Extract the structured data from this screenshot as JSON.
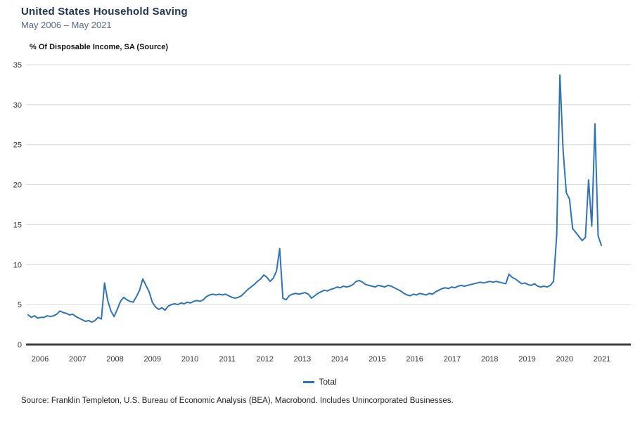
{
  "header": {
    "title": "United States Household Saving",
    "subtitle": "May 2006 – May 2021",
    "unit_label": "% Of Disposable Income, SA (Source)"
  },
  "legend": {
    "label": "Total"
  },
  "footer": {
    "source": "Source: Franklin Templeton, U.S. Bureau of Economic Analysis (BEA), Macrobond. Includes Unincorporated Businesses."
  },
  "colors": {
    "line": "#2e74b5",
    "gridline": "#d9d9d9",
    "zero_axis": "#3f3f3f",
    "tick_text": "#333333",
    "title": "#1f3456",
    "subtitle": "#56688c"
  },
  "chart_data": {
    "type": "line",
    "title": "United States Household Saving",
    "subtitle": "May 2006 – May 2021",
    "ylabel": "% Of Disposable Income, SA (Source)",
    "frequency": "monthly",
    "x_start": "2006-05",
    "x_end": "2021-05",
    "ylim": [
      0,
      35
    ],
    "y_ticks": [
      0,
      5,
      10,
      15,
      20,
      25,
      30,
      35
    ],
    "x_tick_labels": [
      "2006",
      "2007",
      "2008",
      "2009",
      "2010",
      "2011",
      "2012",
      "2013",
      "2014",
      "2015",
      "2016",
      "2017",
      "2018",
      "2019",
      "2020",
      "2021"
    ],
    "grid": "horizontal",
    "legend_position": "bottom-center",
    "annotations": {
      "notable_points": {
        "2008-05": 7.7,
        "2009-05": 8.2,
        "2012-12": 12.0,
        "2018-12": 8.8,
        "2020-04": 33.7,
        "2021-01": 20.6,
        "2021-03": 27.6,
        "2021-05": 12.4
      }
    },
    "series": [
      {
        "name": "Total",
        "color": "#2e74b5",
        "values": [
          3.7,
          3.4,
          3.6,
          3.3,
          3.4,
          3.4,
          3.6,
          3.5,
          3.6,
          3.8,
          4.2,
          4.0,
          3.9,
          3.7,
          3.8,
          3.5,
          3.3,
          3.1,
          2.9,
          3.0,
          2.8,
          3.0,
          3.4,
          3.2,
          7.7,
          5.5,
          4.2,
          3.5,
          4.4,
          5.4,
          5.9,
          5.6,
          5.4,
          5.3,
          6.0,
          6.8,
          8.2,
          7.4,
          6.6,
          5.3,
          4.7,
          4.4,
          4.6,
          4.3,
          4.8,
          5.0,
          5.1,
          5.0,
          5.2,
          5.1,
          5.3,
          5.2,
          5.4,
          5.5,
          5.4,
          5.6,
          6.0,
          6.2,
          6.3,
          6.2,
          6.3,
          6.2,
          6.3,
          6.1,
          5.9,
          5.8,
          5.9,
          6.1,
          6.5,
          6.9,
          7.2,
          7.5,
          7.9,
          8.2,
          8.7,
          8.4,
          7.9,
          8.3,
          9.2,
          12.0,
          5.8,
          5.6,
          6.1,
          6.3,
          6.4,
          6.3,
          6.4,
          6.5,
          6.3,
          5.8,
          6.1,
          6.4,
          6.6,
          6.8,
          6.7,
          6.9,
          7.0,
          7.2,
          7.1,
          7.3,
          7.2,
          7.3,
          7.5,
          7.9,
          8.0,
          7.8,
          7.5,
          7.4,
          7.3,
          7.2,
          7.4,
          7.3,
          7.2,
          7.4,
          7.3,
          7.1,
          6.9,
          6.7,
          6.4,
          6.2,
          6.1,
          6.3,
          6.2,
          6.4,
          6.3,
          6.2,
          6.4,
          6.3,
          6.6,
          6.8,
          7.0,
          7.1,
          7.0,
          7.2,
          7.1,
          7.3,
          7.4,
          7.3,
          7.4,
          7.5,
          7.6,
          7.7,
          7.8,
          7.7,
          7.8,
          7.9,
          7.8,
          7.9,
          7.8,
          7.7,
          7.6,
          8.8,
          8.4,
          8.2,
          7.9,
          7.6,
          7.7,
          7.5,
          7.4,
          7.6,
          7.3,
          7.2,
          7.3,
          7.2,
          7.4,
          7.9,
          13.8,
          33.7,
          24.3,
          19.0,
          18.2,
          14.5,
          14.0,
          13.5,
          13.0,
          13.4,
          20.6,
          14.8,
          27.6,
          13.6,
          12.4
        ]
      }
    ]
  }
}
